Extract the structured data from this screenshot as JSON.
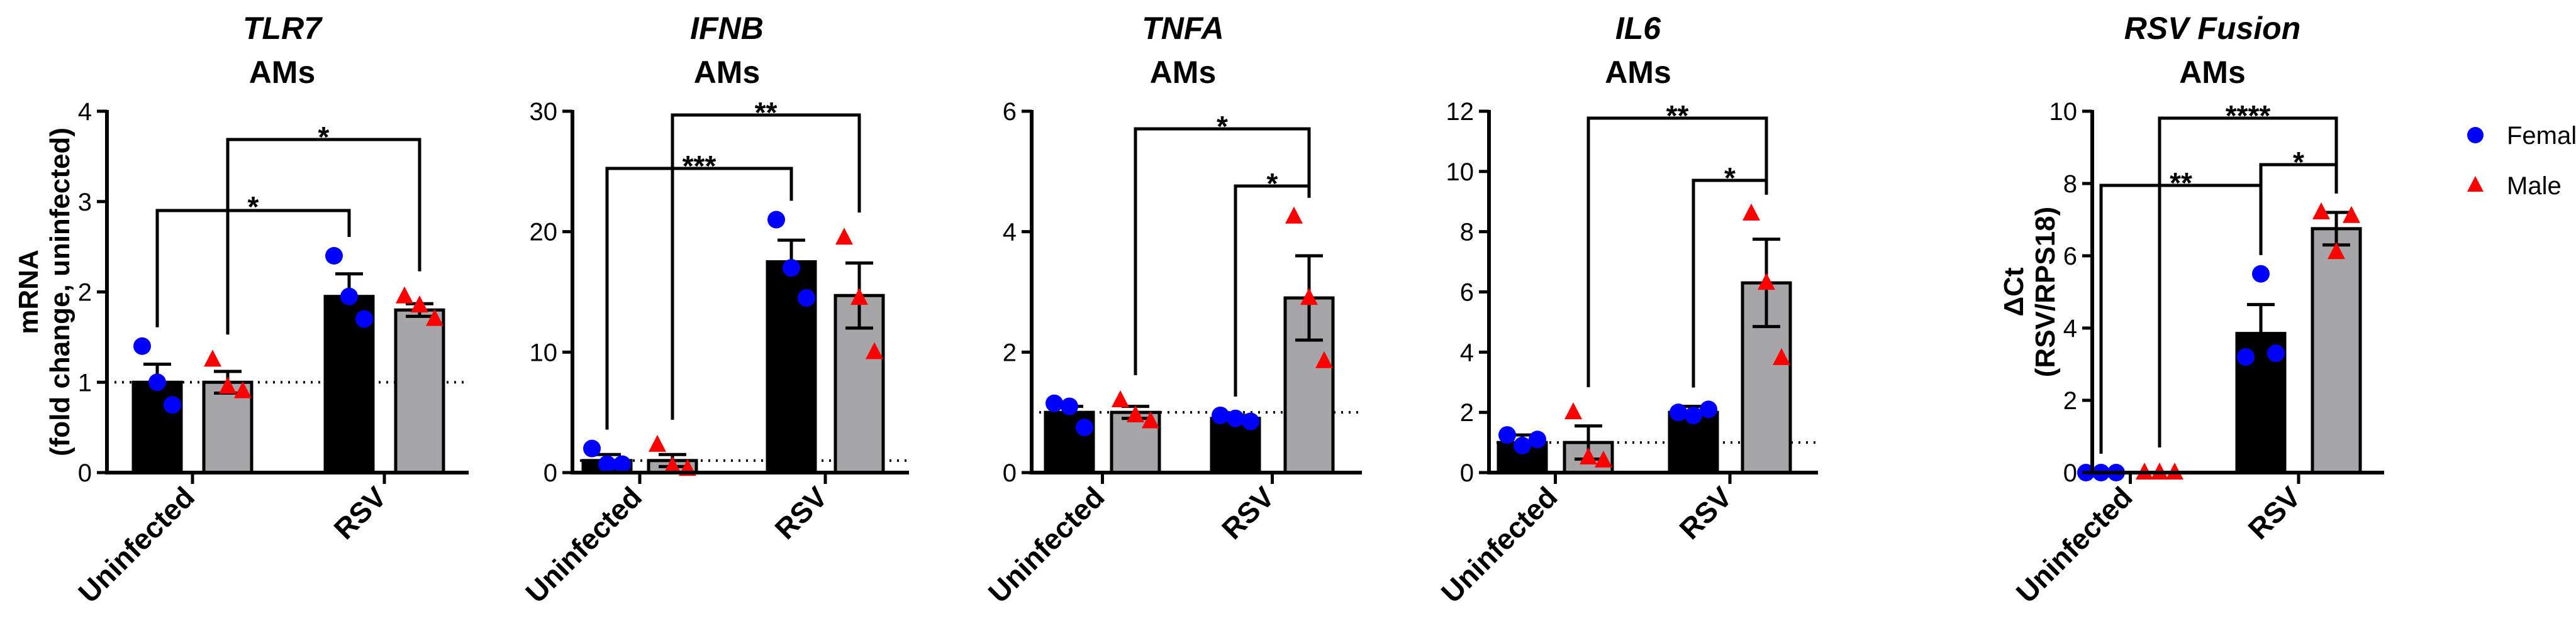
{
  "chart_data": [
    {
      "type": "bar",
      "title": "TLR7",
      "subtitle": "AMs",
      "ylabel": "mRNA\n(fold change, uninfected)",
      "ylim": [
        0,
        4
      ],
      "yticks": [
        "0",
        "1",
        "2",
        "3",
        "4"
      ],
      "categories": [
        "Uninfected",
        "RSV"
      ],
      "reference_line": 1,
      "series": [
        {
          "name": "Female",
          "values": [
            1.0,
            1.95
          ],
          "sem": [
            0.2,
            0.25
          ],
          "points": [
            [
              1.4,
              1.0,
              0.75
            ],
            [
              2.4,
              1.95,
              1.7
            ]
          ]
        },
        {
          "name": "Male",
          "values": [
            1.0,
            1.8
          ],
          "sem": [
            0.12,
            0.07
          ],
          "points": [
            [
              1.25,
              0.95,
              0.9
            ],
            [
              1.95,
              1.85,
              1.7
            ]
          ]
        }
      ],
      "annotations": [
        {
          "label": "*",
          "from": [
            0,
            0
          ],
          "to": [
            1,
            0
          ]
        },
        {
          "label": "*",
          "from": [
            0,
            1
          ],
          "to": [
            1,
            1
          ]
        }
      ]
    },
    {
      "type": "bar",
      "title": "IFNB",
      "subtitle": "AMs",
      "ylabel": "",
      "ylim": [
        0,
        30
      ],
      "yticks": [
        "0",
        "10",
        "20",
        "30"
      ],
      "categories": [
        "Uninfected",
        "RSV"
      ],
      "reference_line": 1,
      "series": [
        {
          "name": "Female",
          "values": [
            1.0,
            17.5
          ],
          "sem": [
            0.5,
            1.8
          ],
          "points": [
            [
              2.0,
              0.7,
              0.7
            ],
            [
              21.0,
              17.0,
              14.5
            ]
          ]
        },
        {
          "name": "Male",
          "values": [
            1.0,
            14.7
          ],
          "sem": [
            0.5,
            2.7
          ],
          "points": [
            [
              2.3,
              0.5,
              0.3
            ],
            [
              19.5,
              14.5,
              10.0
            ]
          ]
        }
      ],
      "annotations": [
        {
          "label": "***",
          "from": [
            0,
            0
          ],
          "to": [
            1,
            0
          ]
        },
        {
          "label": "**",
          "from": [
            0,
            1
          ],
          "to": [
            1,
            1
          ]
        }
      ]
    },
    {
      "type": "bar",
      "title": "TNFA",
      "subtitle": "AMs",
      "ylabel": "",
      "ylim": [
        0,
        6
      ],
      "yticks": [
        "0",
        "2",
        "4",
        "6"
      ],
      "categories": [
        "Uninfected",
        "RSV"
      ],
      "reference_line": 1,
      "series": [
        {
          "name": "Female",
          "values": [
            1.0,
            0.9
          ],
          "sem": [
            0.1,
            0.05
          ],
          "points": [
            [
              1.15,
              1.1,
              0.75
            ],
            [
              0.95,
              0.9,
              0.85
            ]
          ]
        },
        {
          "name": "Male",
          "values": [
            1.0,
            2.9
          ],
          "sem": [
            0.1,
            0.7
          ],
          "points": [
            [
              1.2,
              0.95,
              0.85
            ],
            [
              4.25,
              2.9,
              1.85
            ]
          ]
        }
      ],
      "annotations": [
        {
          "label": "*",
          "from": [
            0,
            1
          ],
          "to": [
            1,
            1
          ]
        },
        {
          "label": "*",
          "from": [
            1,
            0
          ],
          "to": [
            1,
            1
          ]
        }
      ]
    },
    {
      "type": "bar",
      "title": "IL6",
      "subtitle": "AMs",
      "ylabel": "",
      "ylim": [
        0,
        12
      ],
      "yticks": [
        "0",
        "2",
        "4",
        "6",
        "8",
        "10",
        "12"
      ],
      "categories": [
        "Uninfected",
        "RSV"
      ],
      "reference_line": 1,
      "series": [
        {
          "name": "Female",
          "values": [
            1.0,
            2.0
          ],
          "sem": [
            0.25,
            0.2
          ],
          "points": [
            [
              1.25,
              0.9,
              1.1
            ],
            [
              2.0,
              1.9,
              2.1
            ]
          ]
        },
        {
          "name": "Male",
          "values": [
            1.0,
            6.3
          ],
          "sem": [
            0.55,
            1.45
          ],
          "points": [
            [
              2.0,
              0.5,
              0.4
            ],
            [
              8.6,
              6.3,
              3.8
            ]
          ]
        }
      ],
      "annotations": [
        {
          "label": "**",
          "from": [
            0,
            1
          ],
          "to": [
            1,
            1
          ]
        },
        {
          "label": "*",
          "from": [
            1,
            0
          ],
          "to": [
            1,
            1
          ]
        }
      ]
    },
    {
      "type": "bar",
      "title": "RSV Fusion",
      "subtitle": "AMs",
      "ylabel": "ΔCt\n(RSV/RPS18)",
      "ylim": [
        0,
        10
      ],
      "yticks": [
        "0",
        "2",
        "4",
        "6",
        "8",
        "10"
      ],
      "categories": [
        "Uninfected",
        "RSV"
      ],
      "reference_line": null,
      "series": [
        {
          "name": "Female",
          "values": [
            0,
            3.85
          ],
          "sem": [
            0,
            0.8
          ],
          "points": [
            [
              0,
              0,
              0
            ],
            [
              3.2,
              5.5,
              3.3
            ]
          ]
        },
        {
          "name": "Male",
          "values": [
            0,
            6.75
          ],
          "sem": [
            0,
            0.45
          ],
          "points": [
            [
              0,
              0,
              0
            ],
            [
              7.2,
              6.1,
              7.1
            ]
          ]
        }
      ],
      "annotations": [
        {
          "label": "**",
          "from": [
            0,
            0
          ],
          "to": [
            1,
            0
          ]
        },
        {
          "label": "****",
          "from": [
            0,
            1
          ],
          "to": [
            1,
            1
          ]
        },
        {
          "label": "*",
          "from": [
            1,
            0
          ],
          "to": [
            1,
            1
          ]
        }
      ]
    }
  ],
  "legend": {
    "position": "top-right",
    "items": [
      {
        "label": "Female",
        "marker": "circle",
        "color": "#0000ff"
      },
      {
        "label": "Male",
        "marker": "triangle",
        "color": "#ff0000"
      }
    ]
  },
  "colors": {
    "female_bar": "#000000",
    "male_bar": "#a6a6a8",
    "female_point": "#0000ff",
    "male_point": "#ff0000"
  }
}
